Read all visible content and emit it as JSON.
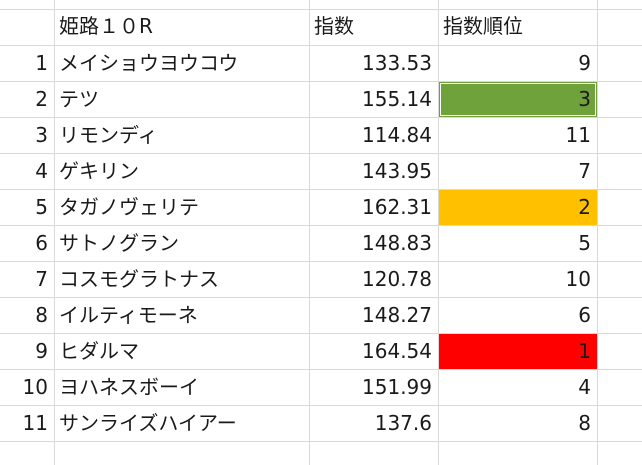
{
  "header": {
    "race_title": "姫路１０R",
    "col_index": "指数",
    "col_rank": "指数順位"
  },
  "rows": [
    {
      "row_no": "1",
      "name": "メイショウヨウコウ",
      "index": "133.53",
      "rank": "9",
      "highlight": ""
    },
    {
      "row_no": "2",
      "name": "テツ",
      "index": "155.14",
      "rank": "3",
      "highlight": "#70a23c"
    },
    {
      "row_no": "3",
      "name": "リモンディ",
      "index": "114.84",
      "rank": "11",
      "highlight": ""
    },
    {
      "row_no": "4",
      "name": "ゲキリン",
      "index": "143.95",
      "rank": "7",
      "highlight": ""
    },
    {
      "row_no": "5",
      "name": "タガノヴェリテ",
      "index": "162.31",
      "rank": "2",
      "highlight": "#ffc000"
    },
    {
      "row_no": "6",
      "name": "サトノグラン",
      "index": "148.83",
      "rank": "5",
      "highlight": ""
    },
    {
      "row_no": "7",
      "name": "コスモグラトナス",
      "index": "120.78",
      "rank": "10",
      "highlight": ""
    },
    {
      "row_no": "8",
      "name": "イルティモーネ",
      "index": "148.27",
      "rank": "6",
      "highlight": ""
    },
    {
      "row_no": "9",
      "name": "ヒダルマ",
      "index": "164.54",
      "rank": "1",
      "highlight": "#ff0000"
    },
    {
      "row_no": "10",
      "name": "ヨハネスボーイ",
      "index": "151.99",
      "rank": "4",
      "highlight": ""
    },
    {
      "row_no": "11",
      "name": "サンライズハイアー",
      "index": "137.6",
      "rank": "8",
      "highlight": ""
    }
  ]
}
